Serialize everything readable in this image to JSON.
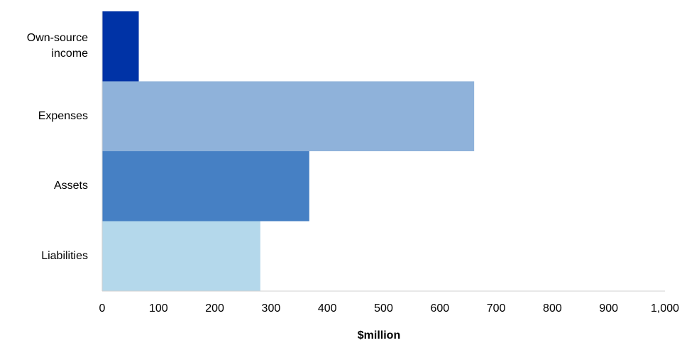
{
  "chart_data": {
    "type": "hbar",
    "categories": [
      "Own-source income",
      "Expenses",
      "Assets",
      "Liabilities"
    ],
    "values": [
      65,
      661,
      368,
      281
    ],
    "colors": [
      "#0033a6",
      "#8fb2da",
      "#4680c4",
      "#b4d8eb"
    ],
    "x_label": "$million",
    "xlim": [
      0,
      1000
    ],
    "xticks": [
      0,
      100,
      200,
      300,
      400,
      500,
      600,
      700,
      800,
      900,
      {
        "value": 1000,
        "label": "1,000"
      }
    ]
  }
}
